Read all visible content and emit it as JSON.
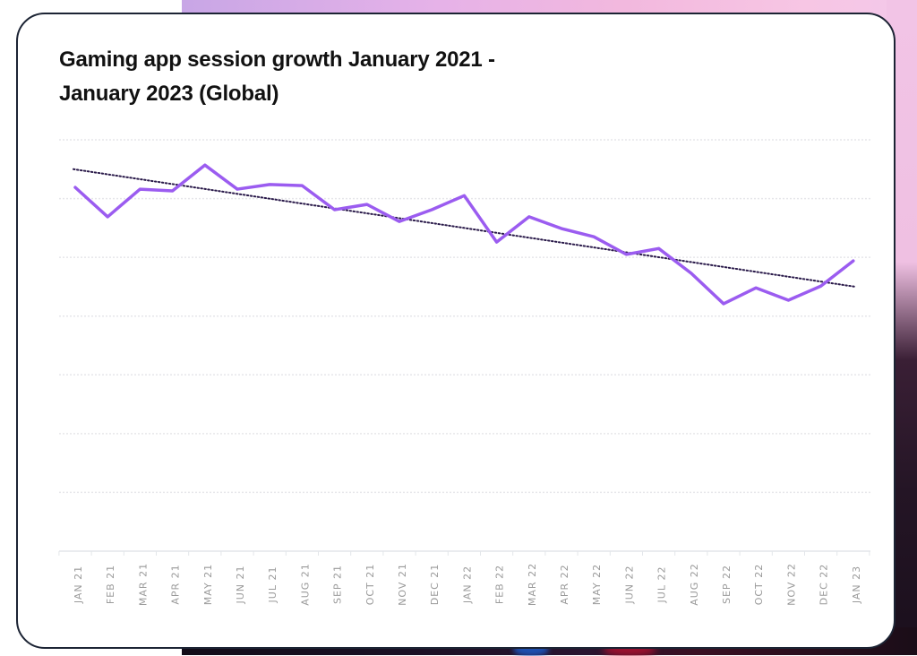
{
  "chart_data": {
    "type": "line",
    "title": "Gaming app session growth January 2021 - January 2023 (Global)",
    "title_lines": [
      "Gaming app session growth January 2021 -",
      "January 2023 (Global)"
    ],
    "xlabel": "",
    "ylabel": "",
    "y_units": "relative (gridline units, no y-axis labels shown)",
    "ylim": [
      0,
      7
    ],
    "gridlines": 7,
    "grid": true,
    "legend": "none",
    "categories": [
      "JAN 21",
      "FEB 21",
      "MAR 21",
      "APR 21",
      "MAY 21",
      "JUN 21",
      "JUL 21",
      "AUG 21",
      "SEP 21",
      "OCT 21",
      "NOV 21",
      "DEC 21",
      "JAN 22",
      "FEB 22",
      "MAR 22",
      "APR 22",
      "MAY 22",
      "JUN 22",
      "JUL 22",
      "AUG 22",
      "SEP 22",
      "OCT 22",
      "NOV 22",
      "DEC 22",
      "JAN 23"
    ],
    "series": [
      {
        "name": "Gaming app sessions",
        "color": "#9b5cf0",
        "style": "solid",
        "values": [
          6.19,
          5.69,
          6.16,
          6.13,
          6.57,
          6.16,
          6.24,
          6.22,
          5.81,
          5.9,
          5.61,
          5.81,
          6.05,
          5.26,
          5.69,
          5.49,
          5.35,
          5.05,
          5.15,
          4.73,
          4.21,
          4.48,
          4.27,
          4.51,
          4.94
        ]
      },
      {
        "name": "Trend line",
        "color": "#2a1a4a",
        "style": "dotted",
        "type": "linear-trend",
        "start": 6.5,
        "end": 4.5
      }
    ]
  }
}
